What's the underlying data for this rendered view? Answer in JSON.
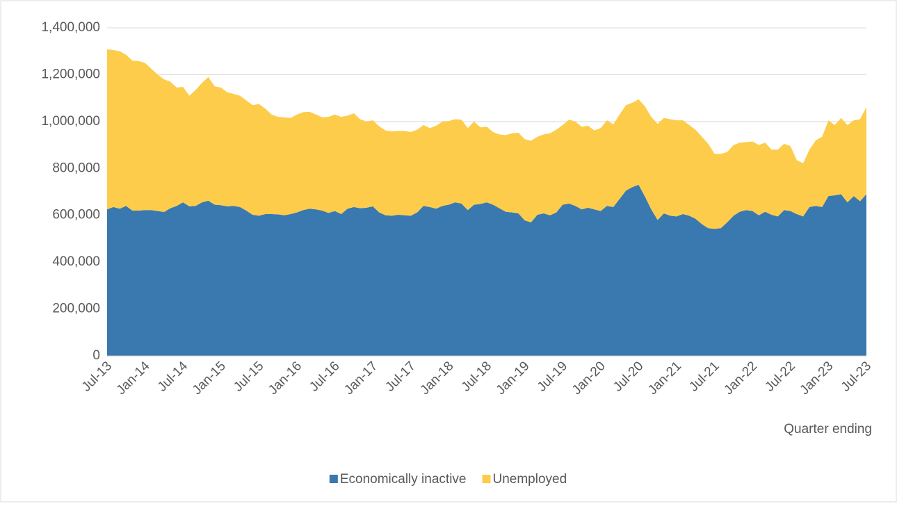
{
  "chart_data": {
    "type": "stacked-area",
    "x_label": "Quarter ending",
    "categories": [
      "Jul-13",
      null,
      null,
      null,
      null,
      null,
      "Jan-14",
      null,
      null,
      null,
      null,
      null,
      "Jul-14",
      null,
      null,
      null,
      null,
      null,
      "Jan-15",
      null,
      null,
      null,
      null,
      null,
      "Jul-15",
      null,
      null,
      null,
      null,
      null,
      "Jan-16",
      null,
      null,
      null,
      null,
      null,
      "Jul-16",
      null,
      null,
      null,
      null,
      null,
      "Jan-17",
      null,
      null,
      null,
      null,
      null,
      "Jul-17",
      null,
      null,
      null,
      null,
      null,
      "Jan-18",
      null,
      null,
      null,
      null,
      null,
      "Jul-18",
      null,
      null,
      null,
      null,
      null,
      "Jan-19",
      null,
      null,
      null,
      null,
      null,
      "Jul-19",
      null,
      null,
      null,
      null,
      null,
      "Jan-20",
      null,
      null,
      null,
      null,
      null,
      "Jul-20",
      null,
      null,
      null,
      null,
      null,
      "Jan-21",
      null,
      null,
      null,
      null,
      null,
      "Jul-21",
      null,
      null,
      null,
      null,
      null,
      "Jan-22",
      null,
      null,
      null,
      null,
      null,
      "Jul-22",
      null,
      null,
      null,
      null,
      null,
      "Jan-23",
      null,
      null,
      null,
      null,
      null,
      "Jul-23"
    ],
    "series": [
      {
        "name": "Economically inactive",
        "color": "#3a78b0",
        "values": [
          625000,
          635000,
          628000,
          640000,
          620000,
          620000,
          622000,
          622000,
          618000,
          614000,
          630000,
          640000,
          655000,
          638000,
          640000,
          655000,
          662000,
          645000,
          643000,
          638000,
          640000,
          635000,
          620000,
          602000,
          598000,
          605000,
          605000,
          604000,
          600000,
          605000,
          612000,
          622000,
          628000,
          625000,
          620000,
          610000,
          618000,
          605000,
          628000,
          635000,
          630000,
          632000,
          638000,
          612000,
          600000,
          598000,
          602000,
          600000,
          598000,
          612000,
          640000,
          635000,
          628000,
          640000,
          645000,
          655000,
          650000,
          622000,
          645000,
          648000,
          655000,
          645000,
          630000,
          615000,
          612000,
          608000,
          578000,
          570000,
          602000,
          608000,
          600000,
          612000,
          645000,
          650000,
          640000,
          625000,
          632000,
          625000,
          618000,
          640000,
          635000,
          670000,
          705000,
          720000,
          730000,
          680000,
          625000,
          580000,
          608000,
          598000,
          595000,
          605000,
          598000,
          585000,
          562000,
          545000,
          542000,
          545000,
          570000,
          598000,
          615000,
          622000,
          618000,
          600000,
          615000,
          602000,
          595000,
          622000,
          618000,
          605000,
          595000,
          635000,
          640000,
          635000,
          682000,
          685000,
          690000,
          655000,
          682000,
          660000,
          690000
        ]
      },
      {
        "name": "Unemployed",
        "color": "#fdcc4a",
        "values": [
          683000,
          670000,
          672000,
          645000,
          640000,
          638000,
          628000,
          603000,
          582000,
          566000,
          540000,
          505000,
          493000,
          472000,
          495000,
          510000,
          528000,
          505000,
          502000,
          487000,
          478000,
          475000,
          470000,
          468000,
          477000,
          450000,
          425000,
          416000,
          418000,
          410000,
          418000,
          418000,
          414000,
          405000,
          398000,
          410000,
          412000,
          415000,
          397000,
          400000,
          380000,
          368000,
          367000,
          368000,
          362000,
          360000,
          358000,
          360000,
          357000,
          353000,
          345000,
          337000,
          354000,
          360000,
          357000,
          355000,
          358000,
          350000,
          355000,
          327000,
          323000,
          310000,
          315000,
          327000,
          338000,
          344000,
          347000,
          348000,
          333000,
          337000,
          350000,
          353000,
          340000,
          358000,
          360000,
          353000,
          350000,
          337000,
          354000,
          365000,
          353000,
          360000,
          365000,
          360000,
          365000,
          385000,
          395000,
          410000,
          407000,
          412000,
          410000,
          400000,
          387000,
          380000,
          373000,
          360000,
          320000,
          317000,
          300000,
          302000,
          295000,
          290000,
          297000,
          300000,
          295000,
          278000,
          285000,
          283000,
          277000,
          230000,
          227000,
          245000,
          280000,
          300000,
          323000,
          300000,
          325000,
          330000,
          323000,
          350000,
          372000
        ]
      }
    ],
    "ylim": [
      0,
      1400000
    ],
    "yticks": [
      0,
      {
        "value": 200000,
        "label": "200,000"
      },
      {
        "value": 400000,
        "label": "400,000"
      },
      {
        "value": 600000,
        "label": "600,000"
      },
      {
        "value": 800000,
        "label": "800,000"
      },
      {
        "value": 1000000,
        "label": "1,000,000"
      },
      {
        "value": 1200000,
        "label": "1,200,000"
      },
      {
        "value": 1400000,
        "label": "1,400,000"
      }
    ],
    "grid": true,
    "legend": "bottom"
  }
}
